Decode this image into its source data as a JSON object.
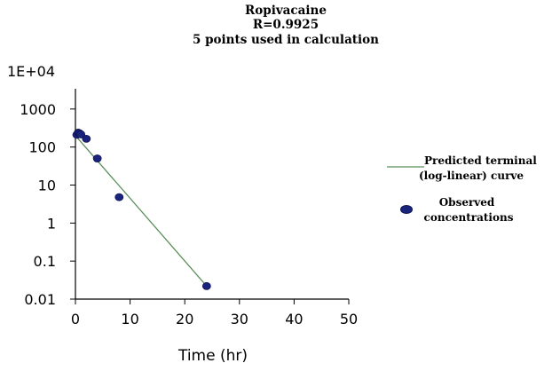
{
  "chart_data": {
    "type": "scatter",
    "title_lines": [
      "Ropivacaine",
      "R=0.9925",
      "5 points used in calculation"
    ],
    "xlabel": "Time (hr)",
    "ylabel": "",
    "xlim": [
      0,
      50
    ],
    "ylim": [
      0.01,
      10000
    ],
    "y_scale": "log",
    "grid": false,
    "x_ticks": [
      0,
      10,
      20,
      30,
      40,
      50
    ],
    "x_tick_labels": [
      "0",
      "10",
      "20",
      "30",
      "40",
      "50"
    ],
    "y_ticks": [
      0.01,
      0.1,
      1,
      10,
      100,
      1000,
      10000
    ],
    "y_tick_labels": [
      "0.01",
      "0.1",
      "1",
      "10",
      "100",
      "1000",
      "1E+04"
    ],
    "legend_position": "right",
    "series": [
      {
        "name": "Predicted terminal (log-linear) curve",
        "legend_lines": [
          "Predicted terminal",
          "(log-linear) curve"
        ],
        "kind": "line",
        "color": "#5a8f5a",
        "x": [
          0,
          24
        ],
        "y": [
          200,
          0.022
        ]
      },
      {
        "name": "Observed concentrations",
        "legend_lines": [
          "Observed",
          "concentrations"
        ],
        "kind": "points",
        "color": "#1a237e",
        "x": [
          0.25,
          0.5,
          0.75,
          1,
          2,
          4,
          8,
          24
        ],
        "y": [
          210,
          240,
          230,
          215,
          165,
          50,
          4.8,
          0.022
        ]
      }
    ]
  }
}
